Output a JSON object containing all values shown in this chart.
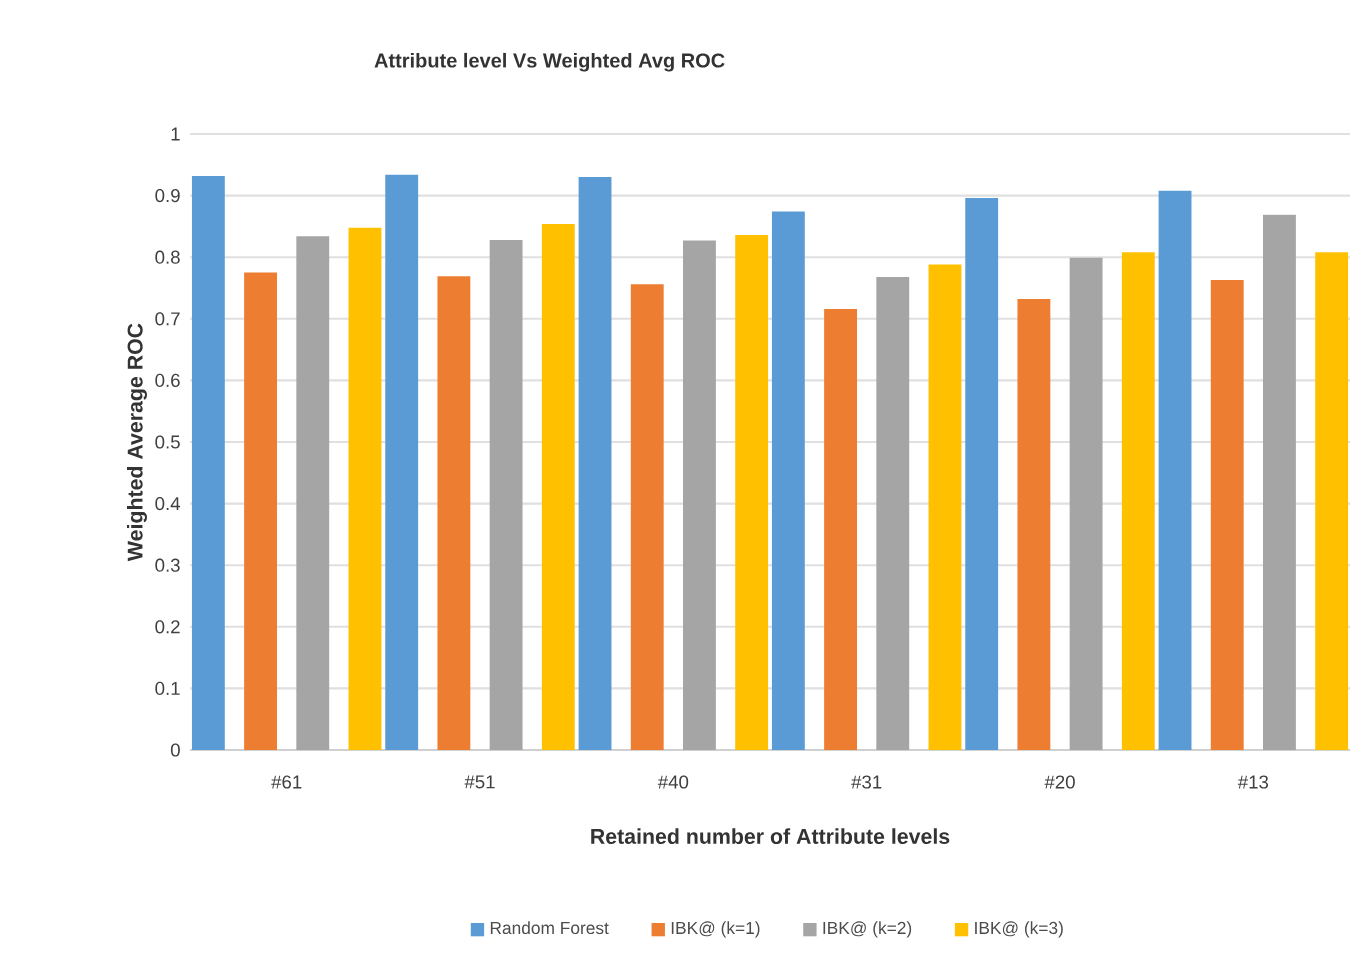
{
  "chart_data": {
    "type": "bar",
    "title": "Attribute level Vs Weighted Avg ROC",
    "xlabel": "Retained number of Attribute levels",
    "ylabel": "Weighted Average ROC",
    "categories": [
      "#61",
      "#51",
      "#40",
      "#31",
      "#20",
      "#13"
    ],
    "series": [
      {
        "name": "Random Forest",
        "color": "#5b9bd5",
        "values": [
          0.932,
          0.934,
          0.93,
          0.874,
          0.896,
          0.908
        ]
      },
      {
        "name": "IBK@  (k=1)",
        "color": "#ed7d31",
        "values": [
          0.775,
          0.769,
          0.756,
          0.716,
          0.732,
          0.763
        ]
      },
      {
        "name": "IBK@  (k=2)",
        "color": "#a5a5a5",
        "values": [
          0.834,
          0.828,
          0.827,
          0.768,
          0.799,
          0.869
        ]
      },
      {
        "name": "IBK@ (k=3)",
        "color": "#ffc000",
        "values": [
          0.848,
          0.854,
          0.836,
          0.788,
          0.808,
          0.808
        ]
      }
    ],
    "ylim": [
      0,
      1
    ],
    "yticks": [
      0,
      0.1,
      0.2,
      0.3,
      0.4,
      0.5,
      0.6,
      0.7,
      0.8,
      0.9,
      1
    ],
    "grid": "y",
    "legend": "bottom"
  }
}
